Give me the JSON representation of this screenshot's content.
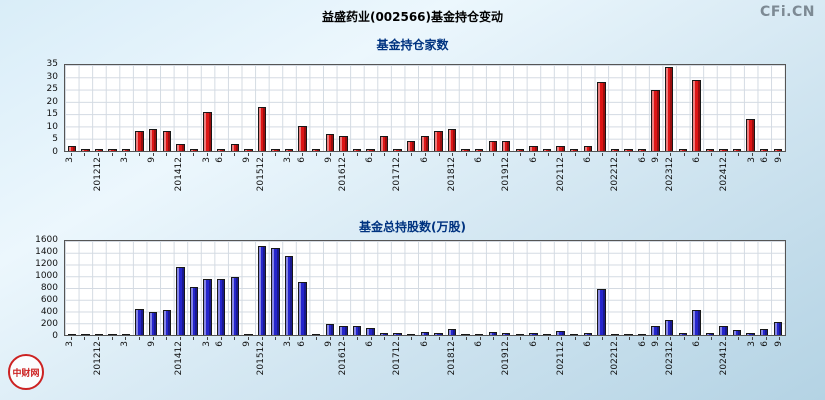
{
  "page": {
    "title": "益盛药业(002566)基金持仓变动",
    "watermark_topright": "CFi.CN",
    "watermark_bottomleft": "中财网"
  },
  "chart_data": [
    {
      "type": "bar",
      "title": "基金持仓家数",
      "bar_color": "#dd1515",
      "bar_edge": "#181818",
      "grid": true,
      "legend": "none",
      "ylim": [
        0,
        35
      ],
      "yticks": [
        0,
        5,
        10,
        15,
        20,
        25,
        30,
        35
      ],
      "categories": [
        "3",
        "",
        "201212",
        "",
        "3",
        "",
        "9",
        "",
        "201412",
        "",
        "3",
        "6",
        "",
        "9",
        "201512",
        "",
        "3",
        "6",
        "",
        "9",
        "201612",
        "",
        "6",
        "",
        "201712",
        "",
        "6",
        "",
        "201812",
        "",
        "6",
        "",
        "201912",
        "",
        "6",
        "",
        "202112",
        "",
        "6",
        "",
        "202212",
        "",
        "6",
        "9",
        "202312",
        "",
        "6",
        "",
        "202412",
        "",
        "3",
        "6",
        "9"
      ],
      "values": [
        2,
        1,
        1,
        1,
        1,
        8,
        9,
        8,
        3,
        1,
        16,
        1,
        3,
        1,
        18,
        1,
        1,
        10,
        1,
        7,
        6,
        1,
        1,
        6,
        1,
        4,
        6,
        8,
        9,
        1,
        1,
        4,
        4,
        1,
        2,
        1,
        2,
        1,
        2,
        28,
        1,
        1,
        1,
        25,
        34,
        1,
        29,
        1,
        1,
        1,
        13,
        1,
        1
      ]
    },
    {
      "type": "bar",
      "title": "基金总持股数(万股)",
      "bar_color": "#2525cc",
      "bar_edge": "#181818",
      "grid": true,
      "legend": "none",
      "ylim": [
        0,
        1600
      ],
      "yticks": [
        0,
        200,
        400,
        600,
        800,
        1000,
        1200,
        1400,
        1600
      ],
      "categories": [
        "3",
        "",
        "201212",
        "",
        "3",
        "",
        "9",
        "",
        "201412",
        "",
        "3",
        "6",
        "",
        "9",
        "201512",
        "",
        "3",
        "6",
        "",
        "9",
        "201612",
        "",
        "6",
        "",
        "201712",
        "",
        "6",
        "",
        "201812",
        "",
        "6",
        "",
        "201912",
        "",
        "6",
        "",
        "202112",
        "",
        "6",
        "",
        "202212",
        "",
        "6",
        "9",
        "202312",
        "",
        "6",
        "",
        "202412",
        "",
        "3",
        "6",
        "9"
      ],
      "values": [
        15,
        5,
        5,
        5,
        10,
        450,
        400,
        430,
        1150,
        820,
        950,
        960,
        980,
        10,
        1520,
        1480,
        1350,
        900,
        20,
        180,
        150,
        160,
        120,
        30,
        40,
        20,
        50,
        30,
        100,
        10,
        20,
        50,
        40,
        10,
        30,
        10,
        60,
        10,
        30,
        780,
        20,
        10,
        20,
        150,
        250,
        30,
        430,
        30,
        150,
        80,
        40,
        100,
        230
      ]
    }
  ]
}
